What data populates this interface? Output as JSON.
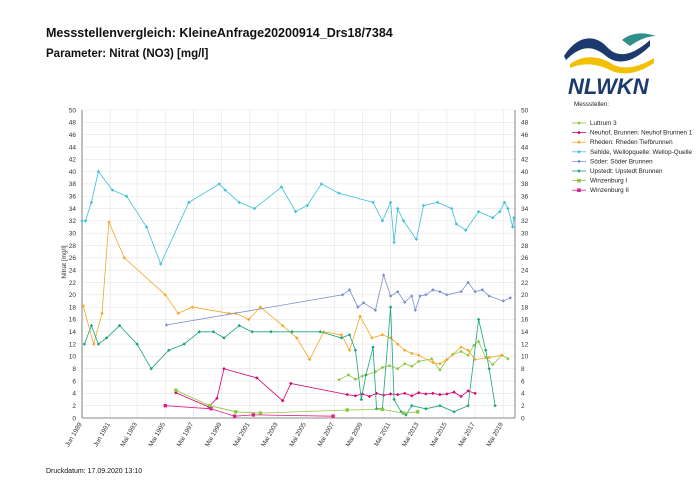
{
  "header": {
    "title": "Messstellenvergleich: KleineAnfrage20200914_Drs18/7384",
    "subtitle": "Parameter: Nitrat (NO3) [mg/l]"
  },
  "logo": {
    "text": "NLWKN",
    "colors": {
      "navy": "#1d3a6e",
      "teal": "#2f8f8a",
      "yellow": "#f2c000",
      "green": "#8cbf2a"
    }
  },
  "footer": {
    "print_date": "Druckdatum: 17.09.2020 13:10"
  },
  "chart_data": {
    "type": "line",
    "ylabel": "Nitrat [mg/l]",
    "ylim": [
      0,
      50
    ],
    "yticks": [
      0,
      2,
      4,
      6,
      8,
      10,
      12,
      14,
      16,
      18,
      20,
      22,
      24,
      26,
      28,
      30,
      32,
      34,
      36,
      38,
      40,
      42,
      44,
      46,
      48,
      50
    ],
    "xlim": [
      "1989-06-01",
      "2020-03-01"
    ],
    "xticks": [
      {
        "date": "1989-06-01",
        "label": "Jun 1989"
      },
      {
        "date": "1991-06-01",
        "label": "Jun 1991"
      },
      {
        "date": "1993-05-01",
        "label": "Mai 1993"
      },
      {
        "date": "1995-05-01",
        "label": "Mai 1995"
      },
      {
        "date": "1997-05-01",
        "label": "Mai 1997"
      },
      {
        "date": "1999-05-01",
        "label": "Mai 1999"
      },
      {
        "date": "2001-05-01",
        "label": "Mai 2001"
      },
      {
        "date": "2003-05-01",
        "label": "Mai 2003"
      },
      {
        "date": "2005-05-01",
        "label": "Mai 2005"
      },
      {
        "date": "2007-05-01",
        "label": "Mai 2007"
      },
      {
        "date": "2009-05-01",
        "label": "Mai 2009"
      },
      {
        "date": "2011-05-01",
        "label": "Mai 2011"
      },
      {
        "date": "2013-05-01",
        "label": "Mai 2013"
      },
      {
        "date": "2015-05-01",
        "label": "Mai 2015"
      },
      {
        "date": "2017-05-01",
        "label": "Mai 2017"
      },
      {
        "date": "2019-05-01",
        "label": "Mai 2019"
      }
    ],
    "grid": true,
    "legend_title": "Messstellen:",
    "legend_position": "right",
    "series": [
      {
        "name": "Luttrum 3",
        "color": "#8cc63f",
        "marker": "diamond",
        "points": [
          [
            "2007-09-01",
            6.2
          ],
          [
            "2008-05-01",
            7.0
          ],
          [
            "2008-11-01",
            6.3
          ],
          [
            "2009-05-01",
            6.8
          ],
          [
            "2010-04-01",
            7.5
          ],
          [
            "2010-10-01",
            8.2
          ],
          [
            "2011-04-01",
            8.5
          ],
          [
            "2011-11-01",
            8.0
          ],
          [
            "2012-05-01",
            8.8
          ],
          [
            "2012-11-01",
            8.4
          ],
          [
            "2013-05-01",
            9.2
          ],
          [
            "2014-04-01",
            9.6
          ],
          [
            "2014-11-01",
            7.8
          ],
          [
            "2015-05-01",
            9.5
          ],
          [
            "2015-10-01",
            10.3
          ],
          [
            "2016-05-01",
            10.8
          ],
          [
            "2016-11-01",
            10.2
          ],
          [
            "2017-04-01",
            11.8
          ],
          [
            "2017-08-01",
            12.4
          ],
          [
            "2018-02-01",
            9.8
          ],
          [
            "2018-08-01",
            8.7
          ],
          [
            "2019-04-01",
            10.2
          ],
          [
            "2019-09-01",
            9.6
          ]
        ]
      },
      {
        "name": "Neuhof, Brunnen: Neuhof Brunnen 1",
        "color": "#d6006f",
        "marker": "diamond",
        "points": [
          [
            "1996-02-01",
            4.1
          ],
          [
            "1998-06-01",
            1.8
          ],
          [
            "1999-01-01",
            3.2
          ],
          [
            "1999-07-01",
            8.0
          ],
          [
            "2001-11-01",
            6.5
          ],
          [
            "2003-09-01",
            2.8
          ],
          [
            "2004-04-01",
            5.6
          ],
          [
            "2008-04-01",
            3.8
          ],
          [
            "2008-11-01",
            3.6
          ],
          [
            "2009-05-01",
            3.9
          ],
          [
            "2009-11-01",
            3.5
          ],
          [
            "2010-05-01",
            4.0
          ],
          [
            "2010-11-01",
            3.7
          ],
          [
            "2011-05-01",
            3.9
          ],
          [
            "2011-11-01",
            3.8
          ],
          [
            "2012-05-01",
            4.0
          ],
          [
            "2012-11-01",
            3.6
          ],
          [
            "2013-05-01",
            4.1
          ],
          [
            "2013-11-01",
            3.9
          ],
          [
            "2014-05-01",
            4.0
          ],
          [
            "2014-11-01",
            3.8
          ],
          [
            "2015-05-01",
            3.9
          ],
          [
            "2015-11-01",
            4.2
          ],
          [
            "2016-05-01",
            3.5
          ],
          [
            "2016-11-01",
            4.4
          ],
          [
            "2017-05-01",
            4.0
          ]
        ]
      },
      {
        "name": "Rheden: Rheden Tiefbrunnen",
        "color": "#f5a623",
        "marker": "diamond",
        "points": [
          [
            "1989-07-01",
            18.2
          ],
          [
            "1990-04-01",
            12.0
          ],
          [
            "1990-11-01",
            17.0
          ],
          [
            "1991-05-01",
            31.8
          ],
          [
            "1992-06-01",
            26.0
          ],
          [
            "1995-05-01",
            20.0
          ],
          [
            "1996-04-01",
            17.0
          ],
          [
            "1997-04-01",
            18.0
          ],
          [
            "1999-11-01",
            17.0
          ],
          [
            "2000-05-01",
            17.0
          ],
          [
            "2001-04-01",
            16.0
          ],
          [
            "2002-02-01",
            18.0
          ],
          [
            "2003-09-01",
            15.0
          ],
          [
            "2004-09-01",
            13.0
          ],
          [
            "2005-08-01",
            9.5
          ],
          [
            "2006-08-01",
            14.0
          ],
          [
            "2007-11-01",
            13.5
          ],
          [
            "2008-06-01",
            11.0
          ],
          [
            "2009-03-01",
            16.5
          ],
          [
            "2010-01-01",
            13.0
          ],
          [
            "2010-10-01",
            13.5
          ],
          [
            "2011-05-01",
            13.0
          ],
          [
            "2011-11-01",
            12.0
          ],
          [
            "2012-05-01",
            11.0
          ],
          [
            "2012-11-01",
            10.5
          ],
          [
            "2013-05-01",
            10.2
          ],
          [
            "2014-05-01",
            9.0
          ],
          [
            "2014-11-01",
            8.8
          ],
          [
            "2015-05-01",
            9.5
          ],
          [
            "2016-05-01",
            11.5
          ],
          [
            "2016-11-01",
            11.0
          ],
          [
            "2017-05-01",
            9.5
          ],
          [
            "2018-05-01",
            9.8
          ],
          [
            "2019-04-01",
            10.2
          ]
        ]
      },
      {
        "name": "Sehlde, Wellopquelle: Wellop-Quelle",
        "color": "#3cc0dd",
        "marker": "diamond",
        "points": [
          [
            "1989-06-01",
            32.0
          ],
          [
            "1989-09-01",
            32.0
          ],
          [
            "1990-02-01",
            35.0
          ],
          [
            "1990-08-01",
            40.0
          ],
          [
            "1991-08-01",
            37.0
          ],
          [
            "1992-08-01",
            36.0
          ],
          [
            "1994-01-01",
            31.0
          ],
          [
            "1995-01-01",
            25.0
          ],
          [
            "1997-01-01",
            35.0
          ],
          [
            "1999-03-01",
            38.0
          ],
          [
            "1999-08-01",
            37.0
          ],
          [
            "2000-08-01",
            35.0
          ],
          [
            "2001-09-01",
            34.0
          ],
          [
            "2003-08-01",
            37.5
          ],
          [
            "2004-08-01",
            33.5
          ],
          [
            "2005-06-01",
            34.5
          ],
          [
            "2006-06-01",
            38.0
          ],
          [
            "2007-09-01",
            36.5
          ],
          [
            "2010-02-01",
            35.0
          ],
          [
            "2010-10-01",
            32.0
          ],
          [
            "2011-05-01",
            35.0
          ],
          [
            "2011-08-01",
            28.5
          ],
          [
            "2011-11-01",
            34.0
          ],
          [
            "2012-04-01",
            32.0
          ],
          [
            "2013-03-01",
            29.0
          ],
          [
            "2013-09-01",
            34.5
          ],
          [
            "2014-09-01",
            35.0
          ],
          [
            "2015-09-01",
            34.0
          ],
          [
            "2016-01-01",
            31.5
          ],
          [
            "2016-09-01",
            30.5
          ],
          [
            "2017-08-01",
            33.5
          ],
          [
            "2018-08-01",
            32.5
          ],
          [
            "2019-02-01",
            33.5
          ],
          [
            "2019-06-01",
            35.0
          ],
          [
            "2019-09-01",
            34.0
          ],
          [
            "2020-01-01",
            31.0
          ],
          [
            "2020-02-01",
            32.5
          ]
        ]
      },
      {
        "name": "Söder: Söder Brunnen",
        "color": "#7b8fd0",
        "marker": "diamond",
        "points": [
          [
            "1995-06-01",
            15.1
          ],
          [
            "2007-12-01",
            20.0
          ],
          [
            "2008-06-01",
            20.8
          ],
          [
            "2009-01-01",
            18.0
          ],
          [
            "2009-06-01",
            18.7
          ],
          [
            "2010-04-01",
            17.5
          ],
          [
            "2010-11-01",
            23.2
          ],
          [
            "2011-05-01",
            19.8
          ],
          [
            "2011-11-01",
            20.5
          ],
          [
            "2012-05-01",
            18.8
          ],
          [
            "2012-11-01",
            19.8
          ],
          [
            "2013-02-01",
            17.5
          ],
          [
            "2013-06-01",
            19.8
          ],
          [
            "2013-11-01",
            20.0
          ],
          [
            "2014-05-01",
            20.8
          ],
          [
            "2014-11-01",
            20.5
          ],
          [
            "2015-05-01",
            20.0
          ],
          [
            "2016-05-01",
            20.5
          ],
          [
            "2016-11-01",
            22.0
          ],
          [
            "2017-05-01",
            20.5
          ],
          [
            "2017-11-01",
            20.8
          ],
          [
            "2018-05-01",
            19.8
          ],
          [
            "2019-05-01",
            19.0
          ],
          [
            "2019-11-01",
            19.5
          ]
        ]
      },
      {
        "name": "Upstedt: Upstedt Brunnen",
        "color": "#1aa37c",
        "marker": "diamond",
        "points": [
          [
            "1989-08-01",
            12.0
          ],
          [
            "1990-02-01",
            15.0
          ],
          [
            "1990-08-01",
            12.0
          ],
          [
            "1991-03-01",
            13.0
          ],
          [
            "1992-02-01",
            15.0
          ],
          [
            "1993-05-01",
            12.0
          ],
          [
            "1994-05-01",
            8.0
          ],
          [
            "1995-08-01",
            11.0
          ],
          [
            "1996-09-01",
            12.0
          ],
          [
            "1997-10-01",
            14.0
          ],
          [
            "1998-10-01",
            14.0
          ],
          [
            "1999-07-01",
            13.0
          ],
          [
            "2000-08-01",
            15.0
          ],
          [
            "2001-07-01",
            14.0
          ],
          [
            "2002-11-01",
            14.0
          ],
          [
            "2004-05-01",
            14.0
          ],
          [
            "2006-05-01",
            14.0
          ],
          [
            "2007-11-01",
            13.0
          ],
          [
            "2008-06-01",
            13.5
          ],
          [
            "2008-11-01",
            11.0
          ],
          [
            "2009-04-01",
            3.0
          ],
          [
            "2009-08-01",
            7.0
          ],
          [
            "2010-02-01",
            11.5
          ],
          [
            "2010-05-01",
            1.5
          ],
          [
            "2010-10-01",
            1.5
          ],
          [
            "2011-05-01",
            18.0
          ],
          [
            "2011-08-01",
            3.0
          ],
          [
            "2012-02-01",
            1.0
          ],
          [
            "2012-06-01",
            0.5
          ],
          [
            "2012-11-01",
            2.0
          ],
          [
            "2013-11-01",
            1.5
          ],
          [
            "2014-11-01",
            2.0
          ],
          [
            "2015-11-01",
            1.0
          ],
          [
            "2016-11-01",
            2.0
          ],
          [
            "2017-08-01",
            16.0
          ],
          [
            "2018-02-01",
            11.0
          ],
          [
            "2018-05-01",
            8.0
          ],
          [
            "2018-10-01",
            2.0
          ]
        ]
      },
      {
        "name": "Winzenburg I",
        "color": "#8cc63f",
        "marker": "square",
        "points": [
          [
            "1996-02-01",
            4.5
          ],
          [
            "1998-07-01",
            2.0
          ],
          [
            "2000-05-01",
            1.0
          ],
          [
            "2002-02-01",
            0.8
          ],
          [
            "2008-04-01",
            1.3
          ],
          [
            "2010-10-01",
            1.4
          ],
          [
            "2012-04-01",
            0.8
          ],
          [
            "2013-04-01",
            1.0
          ]
        ]
      },
      {
        "name": "Winzenburg II",
        "color": "#e0208a",
        "marker": "square",
        "points": [
          [
            "1995-05-01",
            2.0
          ],
          [
            "1998-08-01",
            1.5
          ],
          [
            "2000-04-01",
            0.3
          ],
          [
            "2001-08-01",
            0.5
          ],
          [
            "2007-04-01",
            0.3
          ]
        ]
      }
    ]
  }
}
